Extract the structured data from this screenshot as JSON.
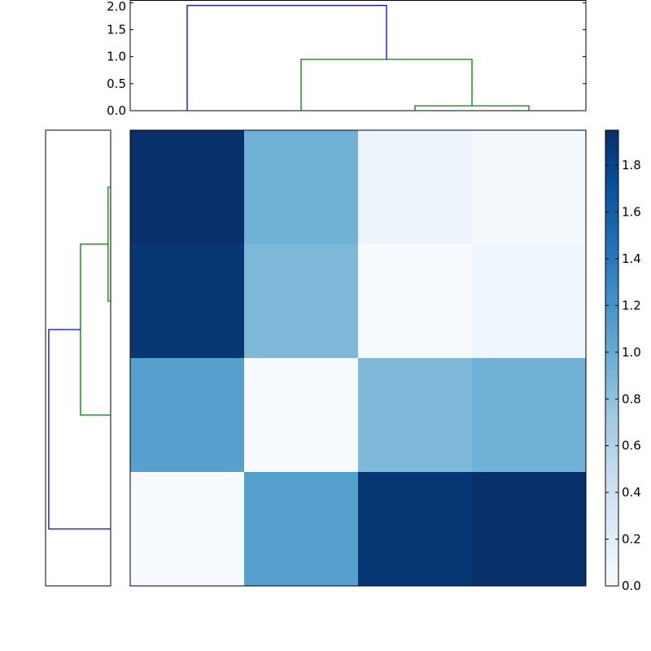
{
  "chart_data": [
    {
      "type": "dendrogram",
      "orientation": "top",
      "leaves": [
        0,
        1,
        2,
        3
      ],
      "links": [
        {
          "left": 2,
          "right": 3,
          "height": 0.09,
          "color": "#008000"
        },
        {
          "left": 1,
          "right": "2+3",
          "height": 0.95,
          "color": "#008000"
        },
        {
          "left": 0,
          "right": "1+2+3",
          "height": 1.95,
          "color": "#0000ff"
        }
      ],
      "ylim": [
        0,
        2.05
      ],
      "yticks": [
        "0.0",
        "0.5",
        "1.0",
        "1.5",
        "2.0"
      ]
    },
    {
      "type": "dendrogram",
      "orientation": "left",
      "leaves": [
        0,
        1,
        2,
        3
      ],
      "links": [
        {
          "left": 0,
          "right": 1,
          "height": 0.08,
          "color": "#008000"
        },
        {
          "left": "0+1",
          "right": 2,
          "height": 0.95,
          "color": "#008000"
        },
        {
          "left": "0+1+2",
          "right": 3,
          "height": 1.95,
          "color": "#0000ff"
        }
      ],
      "xlim": [
        0,
        2.05
      ]
    },
    {
      "type": "heatmap",
      "colormap": "Blues",
      "values": [
        [
          1.95,
          0.95,
          0.1,
          0.03
        ],
        [
          1.9,
          0.88,
          0.0,
          0.07
        ],
        [
          1.1,
          0.0,
          0.88,
          0.95
        ],
        [
          0.0,
          1.1,
          1.9,
          1.95
        ]
      ],
      "vmin": 0,
      "vmax": 1.95,
      "colorbar_ticks": [
        "0.0",
        "0.2",
        "0.4",
        "0.6",
        "0.8",
        "1.0",
        "1.2",
        "1.4",
        "1.6",
        "1.8"
      ]
    }
  ]
}
